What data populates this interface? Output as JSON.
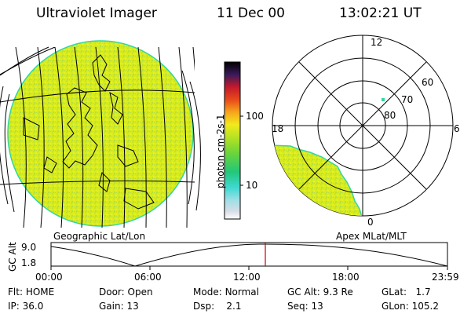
{
  "header": {
    "instrument": "Ultraviolet Imager",
    "date": "11 Dec 00",
    "time": "13:02:21 UT"
  },
  "colorbar": {
    "unit_label": "photon cm-2s-1",
    "ticks": [
      "100",
      "10"
    ],
    "log_scale": true
  },
  "polar_plot": {
    "lat_labels": [
      "80",
      "70",
      "60"
    ],
    "mlt_labels": [
      "12",
      "18",
      "6",
      "0"
    ],
    "caption": "Apex MLat/MLT"
  },
  "geo_plot": {
    "caption": "Geographic Lat/Lon"
  },
  "altitude_strip": {
    "axis_title": "GC Alt",
    "y_ticks": [
      "9.0",
      "1.8"
    ],
    "x_ticks": [
      "00:00",
      "06:00",
      "12:00",
      "18:00",
      "23:59"
    ],
    "current_time_marker": "13:02"
  },
  "info": {
    "row1": [
      {
        "label": "Flt:",
        "value": "HOME"
      },
      {
        "label": "Door:",
        "value": "Open"
      },
      {
        "label": "Mode:",
        "value": "Normal"
      },
      {
        "label": "GC Alt:",
        "value": "9.3 Re"
      },
      {
        "label": "GLat:",
        "value": "1.7"
      }
    ],
    "row2": [
      {
        "label": "IP:",
        "value": "36.0"
      },
      {
        "label": "Gain:",
        "value": "13"
      },
      {
        "label": "Dsp:",
        "value": "2.1"
      },
      {
        "label": "Seq:",
        "value": "13"
      },
      {
        "label": "GLon:",
        "value": "105.2"
      }
    ]
  },
  "colors": {
    "emission": "#d9ec1e",
    "map_lines": "#000000",
    "time_marker": "#cc0000",
    "polar_edge": "#33d6a0"
  }
}
